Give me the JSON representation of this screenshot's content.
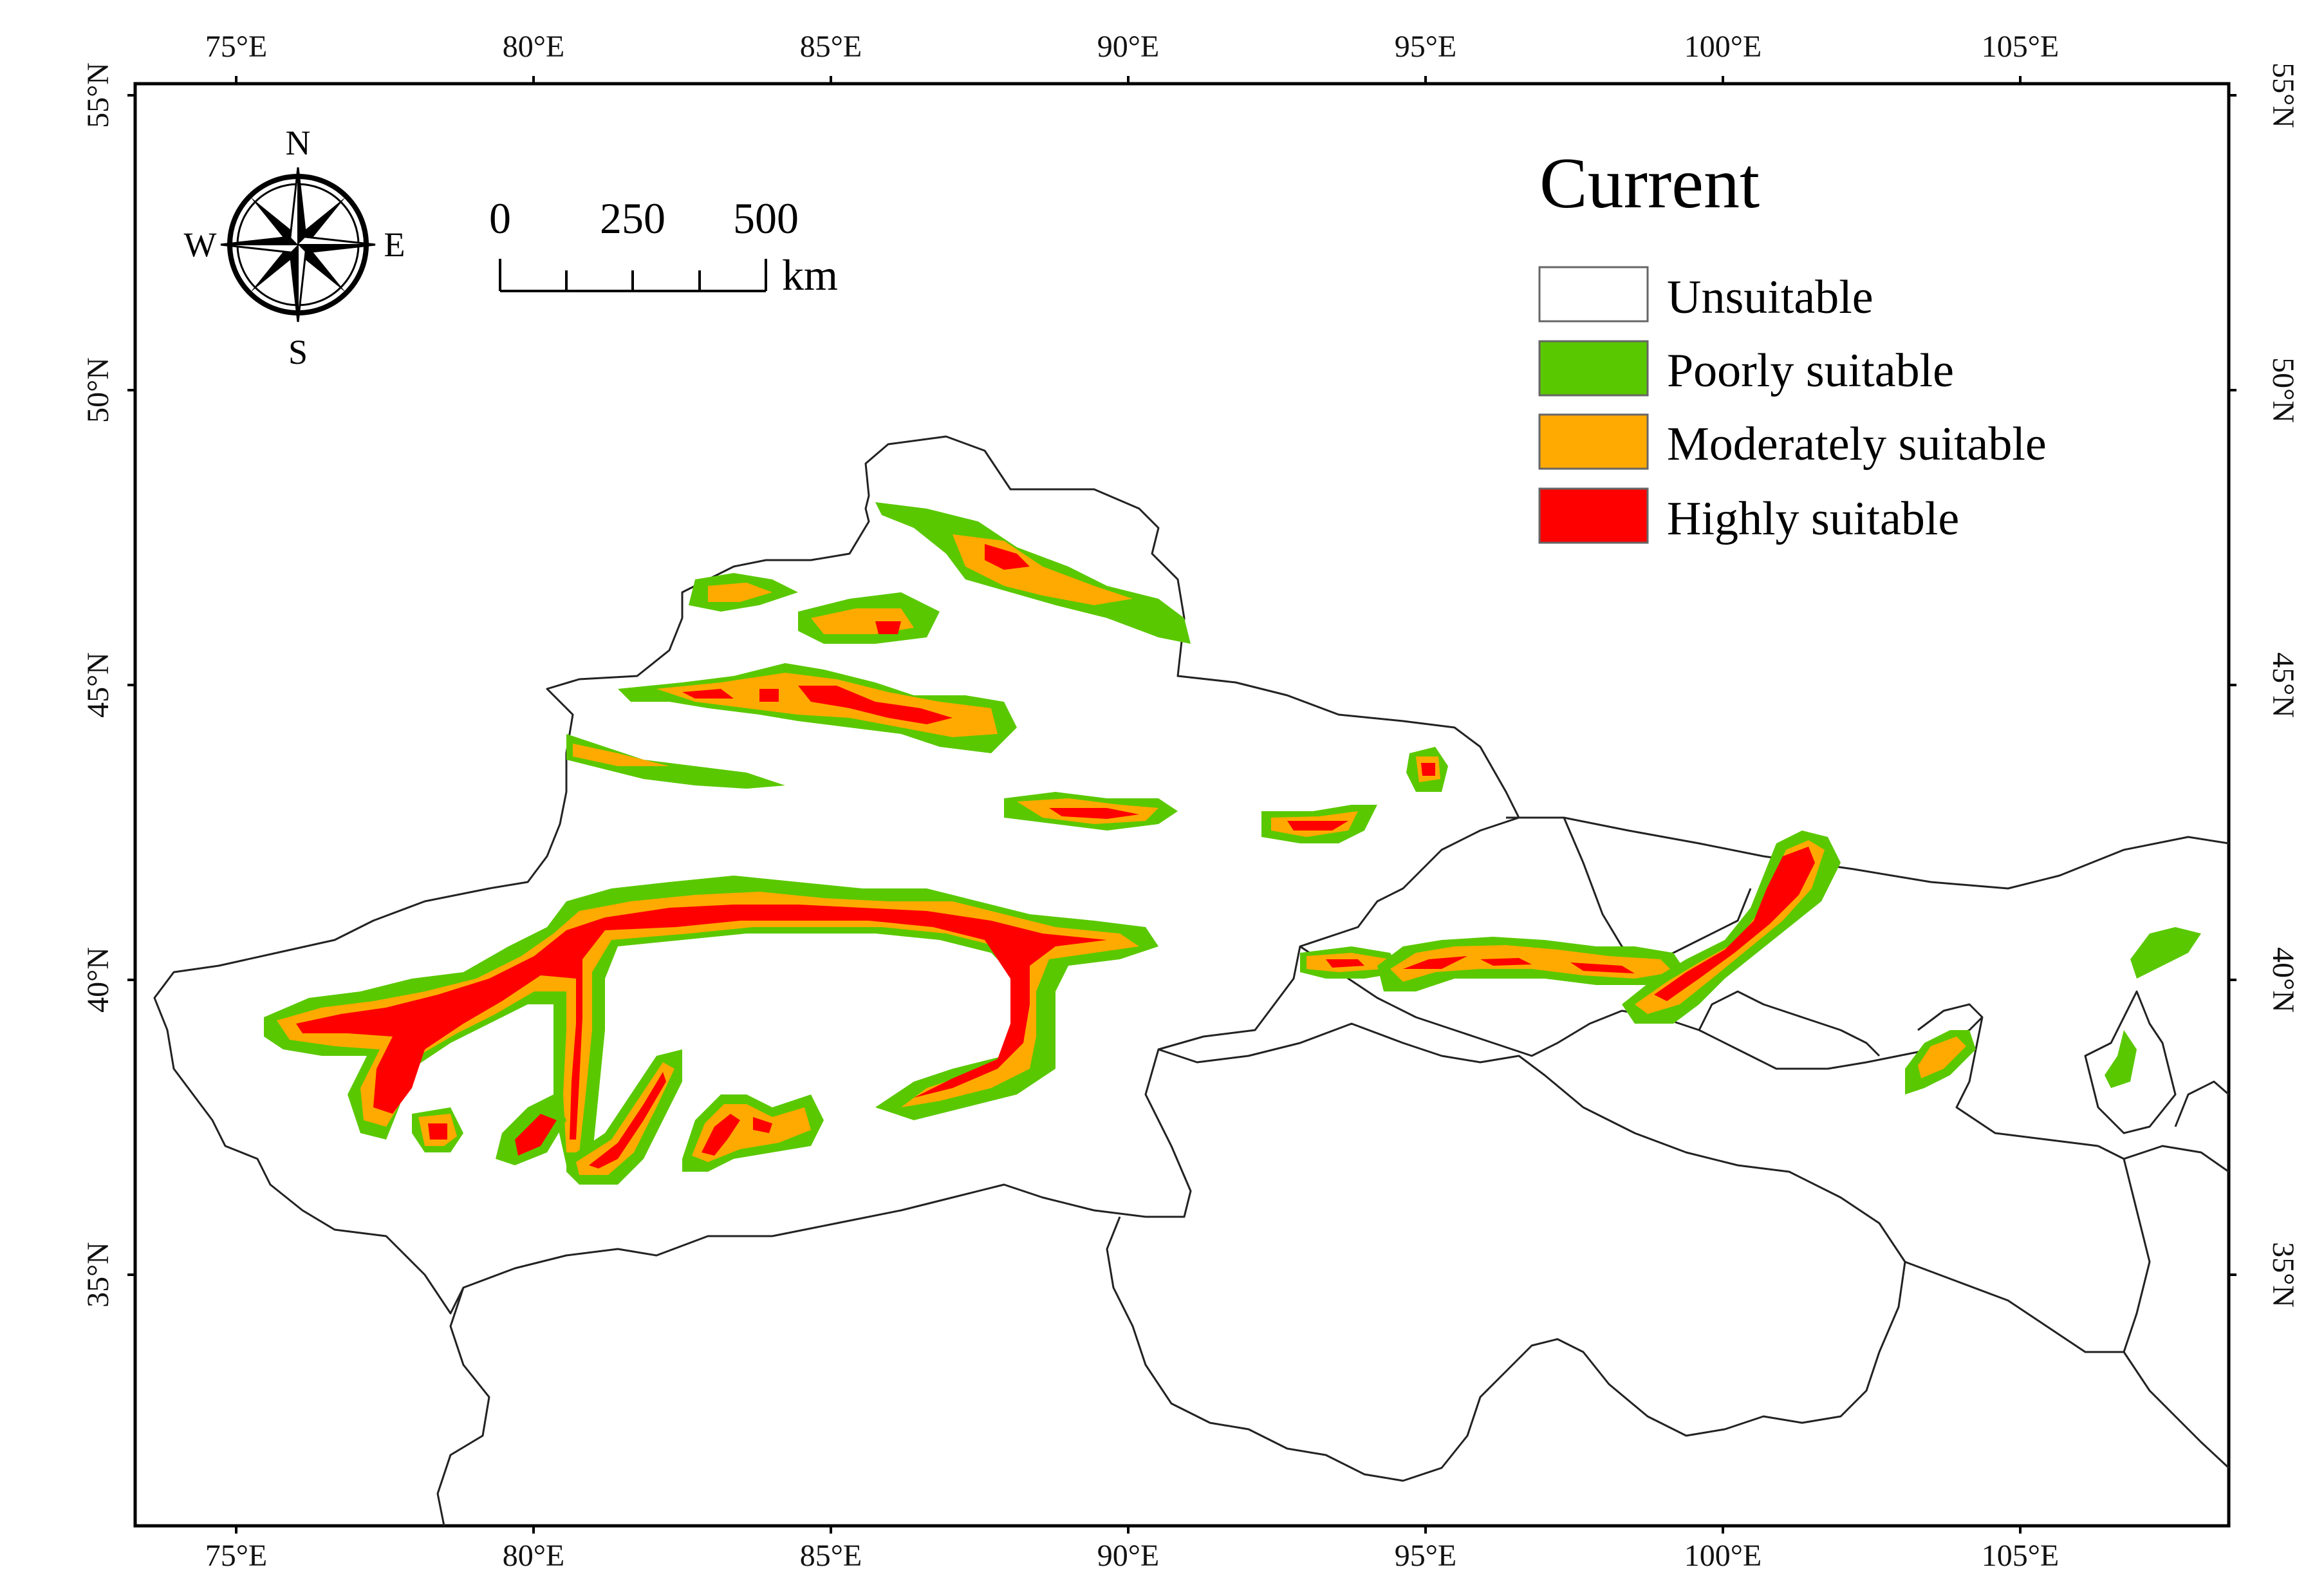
{
  "legend": {
    "title": "Current",
    "items": [
      {
        "label": "Unsuitable",
        "color": "#ffffff"
      },
      {
        "label": "Poorly suitable",
        "color": "#5ac800"
      },
      {
        "label": "Moderately suitable",
        "color": "#ffaa00"
      },
      {
        "label": "Highly suitable",
        "color": "#ff0000"
      }
    ]
  },
  "axes": {
    "lon_labels": [
      "75°E",
      "80°E",
      "85°E",
      "90°E",
      "95°E",
      "100°E",
      "105°E"
    ],
    "lat_labels": [
      "55°N",
      "50°N",
      "45°N",
      "40°N",
      "35°N"
    ]
  },
  "scale_bar": {
    "labels": [
      "0",
      "250",
      "500"
    ],
    "unit": "km"
  },
  "compass": {
    "n": "N",
    "s": "S",
    "e": "E",
    "w": "W"
  }
}
